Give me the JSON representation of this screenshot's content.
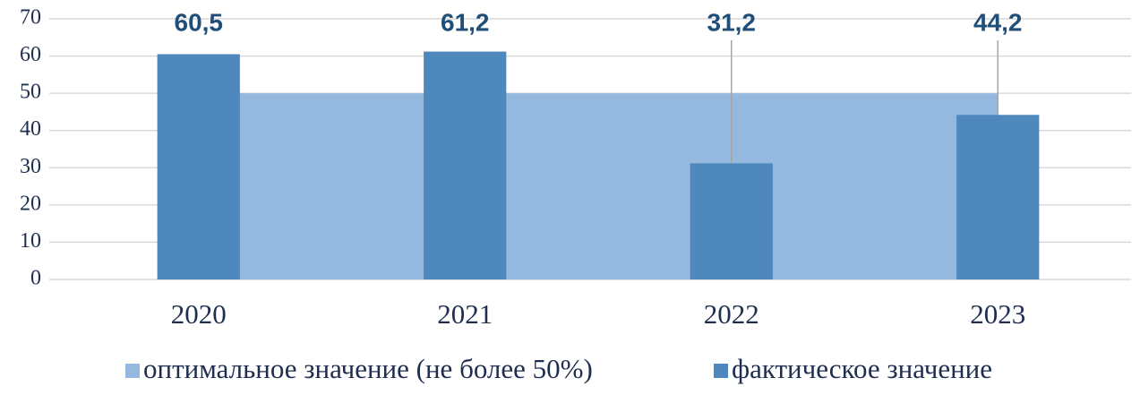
{
  "chart_data": {
    "type": "combo",
    "categories": [
      "2020",
      "2021",
      "2022",
      "2023"
    ],
    "series": [
      {
        "name": "оптимальное значение (не более 50%)",
        "type": "area",
        "color": "#95b8de",
        "values": [
          50,
          50,
          50,
          50
        ]
      },
      {
        "name": "фактическое значение",
        "type": "bar",
        "color": "#4f88bd",
        "values": [
          60.5,
          61.2,
          31.2,
          44.2
        ],
        "value_labels": [
          "60,5",
          "61,2",
          "31,2",
          "44,2"
        ]
      }
    ],
    "ylim": [
      0,
      70
    ],
    "yticks": [
      0,
      10,
      20,
      30,
      40,
      50,
      60,
      70
    ],
    "grid": true,
    "legend": "bottom"
  }
}
